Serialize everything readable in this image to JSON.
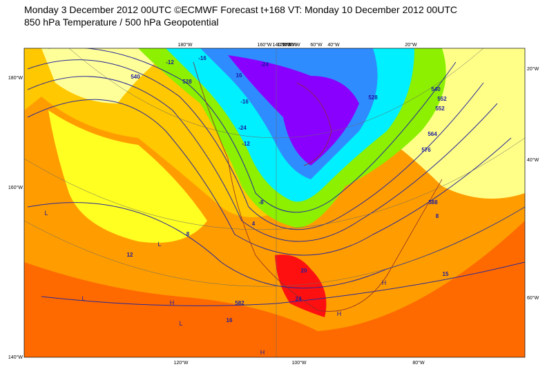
{
  "header": {
    "line1": "Monday 3 December 2012 00UTC ©ECMWF Forecast t+168 VT: Monday 10 December 2012 00UTC",
    "line2": "850 hPa Temperature / 500 hPa Geopotential"
  },
  "map": {
    "top_labels": [
      "180°W",
      "160°W",
      "140°W",
      "120°W",
      "100°W",
      "80°W",
      "60°W",
      "40°W",
      "20°W"
    ],
    "left_labels": [
      "180°W",
      "160°W",
      "140°W"
    ],
    "right_labels": [
      "20°W",
      "40°W",
      "60°W"
    ],
    "bottom_labels": [
      "120°W",
      "100°W",
      "80°W"
    ],
    "contour_labels": [
      "540",
      "528",
      "-12",
      "-16",
      "-24",
      "-16",
      "-12",
      "-24",
      "552",
      "564",
      "576",
      "588",
      "8",
      "12",
      "16",
      "4",
      "-8",
      "16",
      "20",
      "24",
      "582",
      "540",
      "552",
      "528",
      "8",
      "15"
    ],
    "pressure_marks": [
      "L",
      "L",
      "L",
      "L",
      "H",
      "H",
      "H",
      "H"
    ]
  }
}
